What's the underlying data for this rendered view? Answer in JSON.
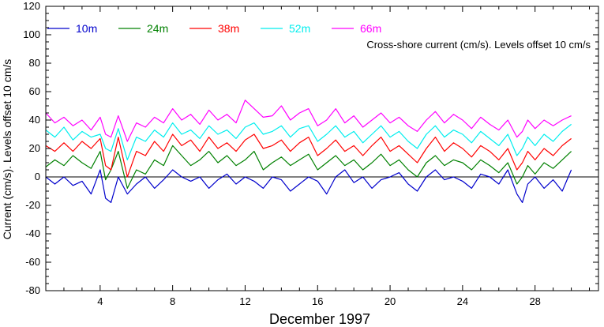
{
  "chart_data": {
    "type": "line",
    "xlabel": "December 1997",
    "ylabel": "Current (cm/s). Levels offset 10 cm/s",
    "annotation": "Cross-shore current (cm/s). Levels offset 10 cm/s",
    "xlim": [
      1,
      31.5
    ],
    "ylim": [
      -80,
      120
    ],
    "xticks": [
      4,
      8,
      12,
      16,
      20,
      24,
      28
    ],
    "yticks": [
      -80,
      -60,
      -40,
      -20,
      0,
      20,
      40,
      60,
      80,
      100,
      120
    ],
    "grid": false,
    "zero_line": true,
    "legend_position": "top-left",
    "series": [
      {
        "name": "10m",
        "color": "#0000cc",
        "offset": 0,
        "x": [
          1,
          1.5,
          2,
          2.5,
          3,
          3.5,
          4,
          4.3,
          4.6,
          5,
          5.5,
          6,
          6.5,
          7,
          7.5,
          8,
          8.5,
          9,
          9.5,
          10,
          10.5,
          11,
          11.5,
          12,
          12.5,
          13,
          13.5,
          14,
          14.5,
          15,
          15.5,
          16,
          16.5,
          17,
          17.5,
          18,
          18.5,
          19,
          19.5,
          20,
          20.5,
          21,
          21.5,
          22,
          22.5,
          23,
          23.5,
          24,
          24.5,
          25,
          25.5,
          26,
          26.5,
          27,
          27.3,
          27.6,
          28,
          28.5,
          29,
          29.5,
          30
        ],
        "y": [
          0,
          -5,
          0,
          -6,
          -3,
          -12,
          5,
          -15,
          -18,
          0,
          -12,
          -5,
          0,
          -8,
          -2,
          5,
          0,
          -3,
          0,
          -8,
          -2,
          2,
          -5,
          0,
          -3,
          -8,
          0,
          -2,
          -10,
          -5,
          0,
          -3,
          -12,
          0,
          5,
          -4,
          0,
          -8,
          -2,
          0,
          3,
          -5,
          -10,
          0,
          5,
          -2,
          0,
          -3,
          -8,
          2,
          0,
          -5,
          5,
          -12,
          -18,
          -5,
          0,
          -8,
          -2,
          -10,
          5
        ]
      },
      {
        "name": "24m",
        "color": "#008000",
        "offset": 10,
        "x": [
          1,
          1.5,
          2,
          2.5,
          3,
          3.5,
          4,
          4.3,
          4.6,
          5,
          5.5,
          6,
          6.5,
          7,
          7.5,
          8,
          8.5,
          9,
          9.5,
          10,
          10.5,
          11,
          11.5,
          12,
          12.5,
          13,
          13.5,
          14,
          14.5,
          15,
          15.5,
          16,
          16.5,
          17,
          17.5,
          18,
          18.5,
          19,
          19.5,
          20,
          20.5,
          21,
          21.5,
          22,
          22.5,
          23,
          23.5,
          24,
          24.5,
          25,
          25.5,
          26,
          26.5,
          27,
          27.3,
          27.6,
          28,
          28.5,
          29,
          29.5,
          30
        ],
        "y": [
          7,
          12,
          8,
          15,
          10,
          6,
          18,
          -2,
          5,
          18,
          -8,
          5,
          2,
          12,
          8,
          22,
          15,
          8,
          12,
          18,
          10,
          15,
          8,
          12,
          18,
          5,
          10,
          14,
          8,
          12,
          16,
          5,
          10,
          15,
          8,
          12,
          5,
          10,
          16,
          8,
          12,
          5,
          0,
          10,
          15,
          8,
          12,
          10,
          5,
          12,
          8,
          3,
          10,
          -5,
          0,
          8,
          2,
          10,
          6,
          12,
          18
        ]
      },
      {
        "name": "38m",
        "color": "#ff0000",
        "offset": 20,
        "x": [
          1,
          1.5,
          2,
          2.5,
          3,
          3.5,
          4,
          4.3,
          4.6,
          5,
          5.5,
          6,
          6.5,
          7,
          7.5,
          8,
          8.5,
          9,
          9.5,
          10,
          10.5,
          11,
          11.5,
          12,
          12.5,
          13,
          13.5,
          14,
          14.5,
          15,
          15.5,
          16,
          16.5,
          17,
          17.5,
          18,
          18.5,
          19,
          19.5,
          20,
          20.5,
          21,
          21.5,
          22,
          22.5,
          23,
          23.5,
          24,
          24.5,
          25,
          25.5,
          26,
          26.5,
          27,
          27.3,
          27.6,
          28,
          28.5,
          29,
          29.5,
          30
        ],
        "y": [
          22,
          18,
          24,
          18,
          25,
          20,
          27,
          8,
          5,
          28,
          0,
          18,
          15,
          25,
          18,
          30,
          22,
          26,
          18,
          28,
          20,
          24,
          18,
          26,
          30,
          20,
          22,
          26,
          18,
          24,
          28,
          15,
          20,
          26,
          18,
          22,
          15,
          22,
          28,
          18,
          22,
          16,
          10,
          20,
          28,
          18,
          24,
          20,
          14,
          22,
          18,
          12,
          20,
          5,
          10,
          18,
          12,
          20,
          15,
          22,
          27
        ]
      },
      {
        "name": "52m",
        "color": "#00eeee",
        "offset": 30,
        "x": [
          1,
          1.5,
          2,
          2.5,
          3,
          3.5,
          4,
          4.3,
          4.6,
          5,
          5.5,
          6,
          6.5,
          7,
          7.5,
          8,
          8.5,
          9,
          9.5,
          10,
          10.5,
          11,
          11.5,
          12,
          12.5,
          13,
          13.5,
          14,
          14.5,
          15,
          15.5,
          16,
          16.5,
          17,
          17.5,
          18,
          18.5,
          19,
          19.5,
          20,
          20.5,
          21,
          21.5,
          22,
          22.5,
          23,
          23.5,
          24,
          24.5,
          25,
          25.5,
          26,
          26.5,
          27,
          27.3,
          27.6,
          28,
          28.5,
          29,
          29.5,
          30
        ],
        "y": [
          33,
          28,
          35,
          26,
          32,
          28,
          30,
          20,
          18,
          34,
          12,
          28,
          25,
          33,
          28,
          38,
          30,
          33,
          27,
          36,
          30,
          33,
          27,
          35,
          38,
          30,
          32,
          36,
          28,
          34,
          36,
          25,
          30,
          36,
          28,
          32,
          24,
          30,
          36,
          28,
          32,
          25,
          20,
          30,
          36,
          28,
          33,
          30,
          24,
          32,
          27,
          22,
          30,
          15,
          20,
          28,
          22,
          30,
          25,
          32,
          37
        ]
      },
      {
        "name": "66m",
        "color": "#ff00ff",
        "offset": 40,
        "x": [
          1,
          1.5,
          2,
          2.5,
          3,
          3.5,
          4,
          4.3,
          4.6,
          5,
          5.5,
          6,
          6.5,
          7,
          7.5,
          8,
          8.5,
          9,
          9.5,
          10,
          10.5,
          11,
          11.5,
          12,
          12.5,
          13,
          13.5,
          14,
          14.5,
          15,
          15.5,
          16,
          16.5,
          17,
          17.5,
          18,
          18.5,
          19,
          19.5,
          20,
          20.5,
          21,
          21.5,
          22,
          22.5,
          23,
          23.5,
          24,
          24.5,
          25,
          25.5,
          26,
          26.5,
          27,
          27.3,
          27.6,
          28,
          28.5,
          29,
          29.5,
          30
        ],
        "y": [
          45,
          38,
          42,
          36,
          40,
          33,
          42,
          30,
          28,
          43,
          25,
          38,
          35,
          42,
          38,
          48,
          40,
          44,
          37,
          47,
          40,
          44,
          38,
          54,
          48,
          42,
          43,
          50,
          40,
          45,
          48,
          36,
          40,
          48,
          38,
          43,
          35,
          40,
          45,
          38,
          42,
          36,
          32,
          40,
          46,
          38,
          44,
          40,
          34,
          42,
          37,
          33,
          40,
          28,
          32,
          40,
          34,
          40,
          36,
          40,
          43
        ]
      }
    ]
  }
}
